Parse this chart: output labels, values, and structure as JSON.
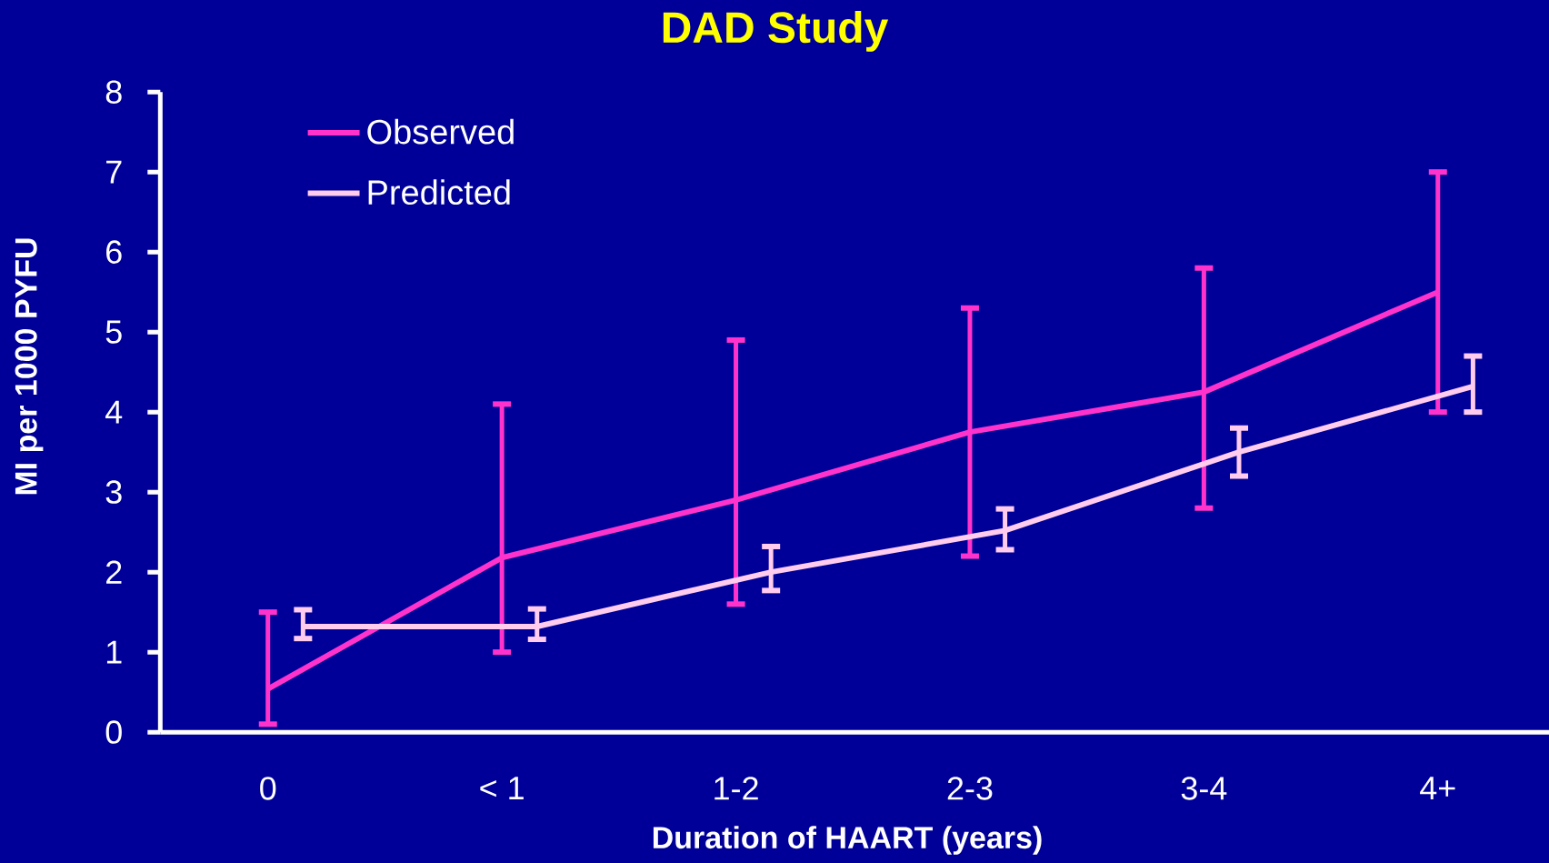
{
  "chart_data": {
    "type": "line",
    "title": "DAD Study",
    "xlabel": "Duration of HAART (years)",
    "ylabel": "MI per 1000 PYFU",
    "categories": [
      "0",
      "< 1",
      "1-2",
      "2-3",
      "3-4",
      "4+"
    ],
    "ylim": [
      0,
      8
    ],
    "yticks": [
      0,
      1,
      2,
      3,
      4,
      5,
      6,
      7,
      8
    ],
    "legend": "top left",
    "grid": false,
    "series": [
      {
        "name": "Observed",
        "color": "#ff33cc",
        "values": [
          0.54,
          2.18,
          2.9,
          3.75,
          4.25,
          5.5
        ],
        "errors": [
          [
            0.1,
            1.5
          ],
          [
            1.0,
            4.1
          ],
          [
            1.6,
            4.9
          ],
          [
            2.2,
            5.3
          ],
          [
            2.8,
            5.8
          ],
          [
            4.0,
            7.0
          ]
        ]
      },
      {
        "name": "Predicted",
        "color": "#ffccee",
        "values": [
          1.32,
          1.32,
          2.0,
          2.52,
          3.5,
          4.32
        ],
        "errors": [
          [
            1.17,
            1.53
          ],
          [
            1.16,
            1.54
          ],
          [
            1.77,
            2.32
          ],
          [
            2.28,
            2.79
          ],
          [
            3.2,
            3.8
          ],
          [
            4.0,
            4.7
          ]
        ]
      }
    ]
  }
}
